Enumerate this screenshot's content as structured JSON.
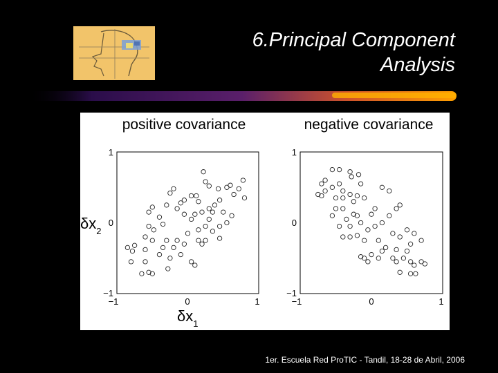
{
  "slide": {
    "title_line1": "6.Principal Component",
    "title_line2": "Analysis",
    "footer": "1er. Escuela Red ProTIC - Tandil, 18-28 de Abril, 2006"
  },
  "logo": {
    "icon": "head-drawing-logo"
  },
  "colors": {
    "background": "#000000",
    "accent": "#ff9900",
    "logo_bg": "#f2c46a"
  },
  "chart_data": [
    {
      "type": "scatter",
      "title": "positive covariance",
      "xlabel": "δx1",
      "ylabel": "δx2",
      "xlim": [
        -1,
        1
      ],
      "ylim": [
        -1,
        1
      ],
      "xticks": [
        "−1",
        "0",
        "1"
      ],
      "yticks": [
        "−1",
        "0",
        "1"
      ],
      "points": [
        [
          0.22,
          0.72
        ],
        [
          0.3,
          0.52
        ],
        [
          0.25,
          0.58
        ],
        [
          0.43,
          0.48
        ],
        [
          0.55,
          0.5
        ],
        [
          0.6,
          0.53
        ],
        [
          0.72,
          0.48
        ],
        [
          0.78,
          0.6
        ],
        [
          0.65,
          0.4
        ],
        [
          0.8,
          0.35
        ],
        [
          0.45,
          0.32
        ],
        [
          0.38,
          0.25
        ],
        [
          0.3,
          0.2
        ],
        [
          0.15,
          0.3
        ],
        [
          0.12,
          0.38
        ],
        [
          0.05,
          0.38
        ],
        [
          -0.05,
          0.32
        ],
        [
          -0.2,
          0.48
        ],
        [
          -0.25,
          0.42
        ],
        [
          -0.1,
          0.28
        ],
        [
          -0.15,
          0.2
        ],
        [
          0.1,
          0.12
        ],
        [
          0.2,
          0.15
        ],
        [
          0.3,
          0.05
        ],
        [
          0.35,
          0.15
        ],
        [
          0.5,
          0.15
        ],
        [
          0.62,
          0.1
        ],
        [
          0.55,
          0.0
        ],
        [
          0.45,
          -0.05
        ],
        [
          0.35,
          -0.12
        ],
        [
          0.25,
          -0.05
        ],
        [
          0.15,
          -0.1
        ],
        [
          0.05,
          0.05
        ],
        [
          -0.05,
          0.12
        ],
        [
          -0.3,
          0.25
        ],
        [
          -0.5,
          0.22
        ],
        [
          -0.55,
          0.15
        ],
        [
          -0.4,
          0.08
        ],
        [
          -0.35,
          -0.02
        ],
        [
          -0.55,
          -0.05
        ],
        [
          -0.6,
          -0.2
        ],
        [
          -0.5,
          -0.25
        ],
        [
          -0.3,
          -0.25
        ],
        [
          -0.2,
          -0.35
        ],
        [
          -0.35,
          -0.35
        ],
        [
          -0.4,
          -0.45
        ],
        [
          -0.6,
          -0.38
        ],
        [
          -0.75,
          -0.32
        ],
        [
          -0.78,
          -0.4
        ],
        [
          -0.8,
          -0.55
        ],
        [
          -0.6,
          -0.55
        ],
        [
          -0.55,
          -0.7
        ],
        [
          -0.65,
          -0.72
        ],
        [
          -0.5,
          -0.72
        ],
        [
          -0.28,
          -0.65
        ],
        [
          -0.25,
          -0.5
        ],
        [
          -0.1,
          -0.45
        ],
        [
          -0.05,
          -0.3
        ],
        [
          -0.15,
          -0.25
        ],
        [
          0.0,
          -0.15
        ],
        [
          0.15,
          -0.25
        ],
        [
          0.25,
          -0.25
        ],
        [
          0.05,
          -0.55
        ],
        [
          0.1,
          -0.6
        ],
        [
          0.2,
          -0.3
        ],
        [
          0.45,
          -0.22
        ],
        [
          -0.85,
          -0.35
        ],
        [
          -0.48,
          -0.1
        ]
      ]
    },
    {
      "type": "scatter",
      "title": "negative covariance",
      "xlim": [
        -1,
        1
      ],
      "ylim": [
        -1,
        1
      ],
      "xticks": [
        "−1",
        "0",
        "1"
      ],
      "yticks": [
        "1",
        "0",
        "−1"
      ],
      "points": [
        [
          -0.55,
          0.75
        ],
        [
          -0.45,
          0.75
        ],
        [
          -0.3,
          0.72
        ],
        [
          -0.28,
          0.65
        ],
        [
          -0.18,
          0.68
        ],
        [
          -0.15,
          0.55
        ],
        [
          -0.65,
          0.6
        ],
        [
          -0.7,
          0.55
        ],
        [
          -0.65,
          0.45
        ],
        [
          -0.7,
          0.38
        ],
        [
          -0.75,
          0.4
        ],
        [
          -0.55,
          0.5
        ],
        [
          -0.45,
          0.55
        ],
        [
          -0.4,
          0.45
        ],
        [
          -0.5,
          0.35
        ],
        [
          -0.4,
          0.35
        ],
        [
          -0.3,
          0.4
        ],
        [
          -0.25,
          0.3
        ],
        [
          -0.2,
          0.38
        ],
        [
          -0.1,
          0.35
        ],
        [
          -0.5,
          0.2
        ],
        [
          -0.4,
          0.2
        ],
        [
          -0.55,
          0.1
        ],
        [
          -0.35,
          0.05
        ],
        [
          -0.25,
          0.12
        ],
        [
          -0.2,
          0.1
        ],
        [
          -0.45,
          -0.05
        ],
        [
          -0.3,
          -0.05
        ],
        [
          -0.15,
          0.0
        ],
        [
          0.0,
          0.12
        ],
        [
          0.05,
          0.2
        ],
        [
          0.15,
          0.5
        ],
        [
          0.25,
          0.45
        ],
        [
          0.35,
          0.2
        ],
        [
          0.4,
          0.25
        ],
        [
          0.25,
          0.1
        ],
        [
          0.15,
          0.0
        ],
        [
          0.05,
          -0.05
        ],
        [
          -0.05,
          -0.1
        ],
        [
          -0.4,
          -0.2
        ],
        [
          -0.3,
          -0.2
        ],
        [
          -0.2,
          -0.18
        ],
        [
          -0.1,
          -0.25
        ],
        [
          0.1,
          -0.25
        ],
        [
          0.3,
          -0.15
        ],
        [
          0.4,
          -0.2
        ],
        [
          0.5,
          -0.1
        ],
        [
          0.6,
          -0.15
        ],
        [
          0.55,
          -0.3
        ],
        [
          0.7,
          -0.25
        ],
        [
          0.5,
          -0.4
        ],
        [
          0.35,
          -0.38
        ],
        [
          0.2,
          -0.35
        ],
        [
          0.15,
          -0.4
        ],
        [
          0.1,
          -0.5
        ],
        [
          -0.1,
          -0.5
        ],
        [
          -0.05,
          -0.55
        ],
        [
          0.0,
          -0.45
        ],
        [
          0.3,
          -0.5
        ],
        [
          0.45,
          -0.5
        ],
        [
          0.55,
          -0.55
        ],
        [
          0.6,
          -0.6
        ],
        [
          0.7,
          -0.55
        ],
        [
          0.75,
          -0.58
        ],
        [
          0.4,
          -0.7
        ],
        [
          0.55,
          -0.72
        ],
        [
          0.62,
          -0.72
        ],
        [
          0.35,
          -0.55
        ],
        [
          -0.15,
          -0.48
        ]
      ]
    }
  ]
}
